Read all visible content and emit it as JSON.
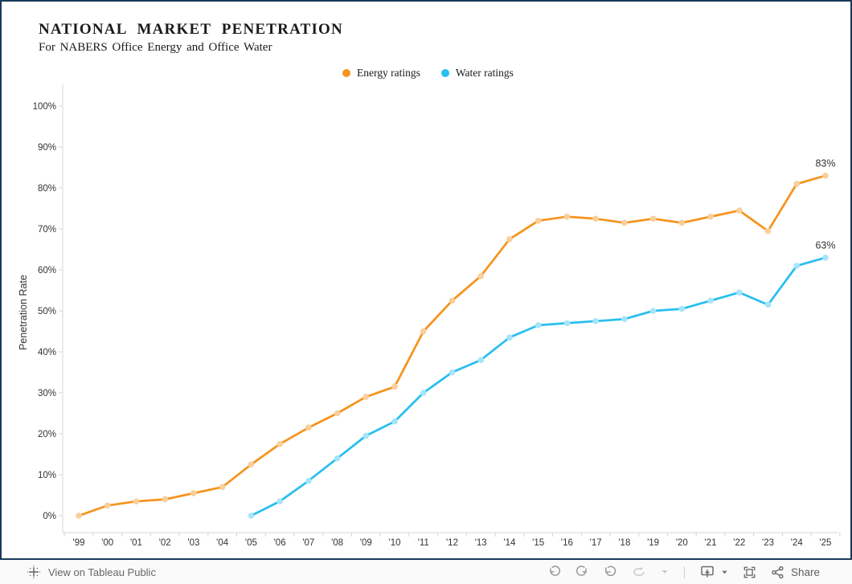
{
  "header": {
    "title": "NATIONAL MARKET PENETRATION",
    "subtitle": "For NABERS Office Energy and Office Water"
  },
  "legend": {
    "items": [
      {
        "label": "Energy ratings",
        "color": "#F5941F"
      },
      {
        "label": "Water ratings",
        "color": "#29BFEF"
      }
    ]
  },
  "chart_data": {
    "type": "line",
    "title": "NATIONAL MARKET PENETRATION",
    "subtitle": "For NABERS Office Energy and Office Water",
    "xlabel": "",
    "ylabel": "Penetration Rate",
    "ylim": [
      0,
      100
    ],
    "yticks": [
      "0%",
      "10%",
      "20%",
      "30%",
      "40%",
      "50%",
      "60%",
      "70%",
      "80%",
      "90%",
      "100%"
    ],
    "grid": false,
    "legend_position": "top",
    "categories": [
      "'99",
      "'00",
      "'01",
      "'02",
      "'03",
      "'04",
      "'05",
      "'06",
      "'07",
      "'08",
      "'09",
      "'10",
      "'11",
      "'12",
      "'13",
      "'14",
      "'15",
      "'16",
      "'17",
      "'18",
      "'19",
      "'20",
      "'21",
      "'22",
      "'23",
      "'24",
      "'25"
    ],
    "series": [
      {
        "name": "Energy ratings",
        "color": "#F5941F",
        "marker_color": "#F9CF9C",
        "end_label": "83%",
        "values": [
          0,
          2.5,
          3.5,
          4,
          5.5,
          7,
          12.5,
          17.5,
          21.5,
          25,
          29,
          31.5,
          45,
          52.5,
          58.5,
          67.5,
          72,
          73,
          72.5,
          71.5,
          72.5,
          71.5,
          73,
          74.5,
          69.5,
          81,
          83
        ]
      },
      {
        "name": "Water ratings",
        "color": "#29BFEF",
        "marker_color": "#A6E5F9",
        "end_label": "63%",
        "values": [
          null,
          null,
          null,
          null,
          null,
          null,
          0,
          3.5,
          8.5,
          14,
          19.5,
          23,
          30,
          35,
          38,
          43.5,
          46.5,
          47,
          47.5,
          48,
          50,
          50.5,
          52.5,
          54.5,
          51.5,
          61,
          63
        ]
      }
    ],
    "end_label_color": "#333333",
    "axis_color": "#d4d4d4",
    "tick_label_color": "#333333"
  },
  "toolbar": {
    "view_label": "View on Tableau Public",
    "share_label": "Share",
    "icons": [
      "tableau-logo",
      "undo",
      "redo",
      "replay",
      "refresh",
      "caret-down",
      "download-device",
      "caret-down",
      "fullscreen",
      "share-nodes"
    ]
  },
  "frame": {
    "border_color": "#1b3a5c"
  }
}
